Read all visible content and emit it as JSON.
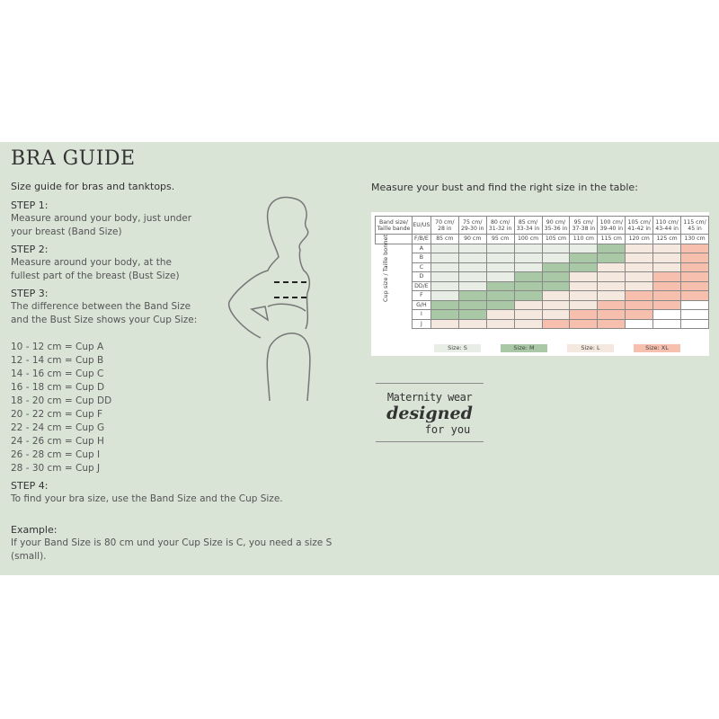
{
  "title": "BRA GUIDE",
  "subtitle": "Size guide for bras and tanktops.",
  "steps": [
    {
      "label": "STEP 1:",
      "text": "Measure around your body, just under your breast (Band Size)"
    },
    {
      "label": "STEP 2:",
      "text": "Measure around your body, at the fullest part of the breast (Bust Size)"
    },
    {
      "label": "STEP 3:",
      "text": "The difference between the Band Size and the Bust Size shows your Cup Size:"
    },
    {
      "label": "STEP 4:",
      "text": "To find your bra size, use the Band Size and the Cup Size."
    }
  ],
  "cups": [
    "10 - 12 cm = Cup A",
    "12 - 14 cm = Cup B",
    "14 - 16 cm = Cup C",
    "16 - 18 cm = Cup D",
    "18 - 20 cm = Cup DD",
    "20 - 22 cm = Cup F",
    "22 - 24 cm = Cup G",
    "24 - 26 cm = Cup H",
    "26 - 28 cm = Cup I",
    "28 - 30 cm = Cup J"
  ],
  "example": {
    "label": "Example:",
    "text": "If your Band Size is 80 cm und your Cup Size is C, you need a size S (small)."
  },
  "table": {
    "title": "Measure your bust and find the right size in the table:",
    "band_label": "Band size/ Taille bande",
    "eu_label": "EU/US",
    "fbe_label": "F/B/E",
    "cup_label": "Cup size / Taille bonnet",
    "eu": [
      "70 cm/ 28 in",
      "75 cm/ 29-30 in",
      "80 cm/ 31-32 in",
      "85 cm/ 33-34 in",
      "90 cm/ 35-36 in",
      "95 cm/ 37-38 in",
      "100 cm/ 39-40 in",
      "105 cm/ 41-42 in",
      "110 cm/ 43-44 in",
      "115 cm/ 45 in"
    ],
    "fbe": [
      "85 cm",
      "90 cm",
      "95 cm",
      "100 cm",
      "105 cm",
      "110 cm",
      "115 cm",
      "120 cm",
      "125 cm",
      "130 cm"
    ],
    "rows": [
      {
        "cup": "A",
        "sizes": [
          "S",
          "S",
          "S",
          "S",
          "S",
          "S",
          "M",
          "L",
          "L",
          "XL"
        ]
      },
      {
        "cup": "B",
        "sizes": [
          "S",
          "S",
          "S",
          "S",
          "S",
          "M",
          "M",
          "L",
          "L",
          "XL"
        ]
      },
      {
        "cup": "C",
        "sizes": [
          "S",
          "S",
          "S",
          "S",
          "M",
          "M",
          "L",
          "L",
          "L",
          "XL"
        ]
      },
      {
        "cup": "D",
        "sizes": [
          "S",
          "S",
          "S",
          "M",
          "M",
          "L",
          "L",
          "L",
          "XL",
          "XL"
        ]
      },
      {
        "cup": "DD/E",
        "sizes": [
          "S",
          "S",
          "M",
          "M",
          "M",
          "L",
          "L",
          "L",
          "XL",
          "XL"
        ]
      },
      {
        "cup": "F",
        "sizes": [
          "S",
          "M",
          "M",
          "M",
          "L",
          "L",
          "L",
          "XL",
          "XL",
          "XL"
        ]
      },
      {
        "cup": "G/H",
        "sizes": [
          "M",
          "M",
          "M",
          "L",
          "L",
          "L",
          "XL",
          "XL",
          "XL",
          ""
        ]
      },
      {
        "cup": "I",
        "sizes": [
          "M",
          "M",
          "L",
          "L",
          "L",
          "XL",
          "XL",
          "XL",
          "",
          ""
        ]
      },
      {
        "cup": "J",
        "sizes": [
          "L",
          "L",
          "L",
          "L",
          "XL",
          "XL",
          "XL",
          "",
          "",
          ""
        ]
      }
    ],
    "legend": [
      {
        "key": "S",
        "label": "Size: S",
        "color": "#e8ede6"
      },
      {
        "key": "M",
        "label": "Size: M",
        "color": "#a9c9a6"
      },
      {
        "key": "L",
        "label": "Size: L",
        "color": "#f4e8df"
      },
      {
        "key": "XL",
        "label": "Size: XL",
        "color": "#f6bfae"
      }
    ]
  },
  "logo": {
    "line1": "Maternity wear",
    "line2": "designed",
    "line3": "for you"
  }
}
